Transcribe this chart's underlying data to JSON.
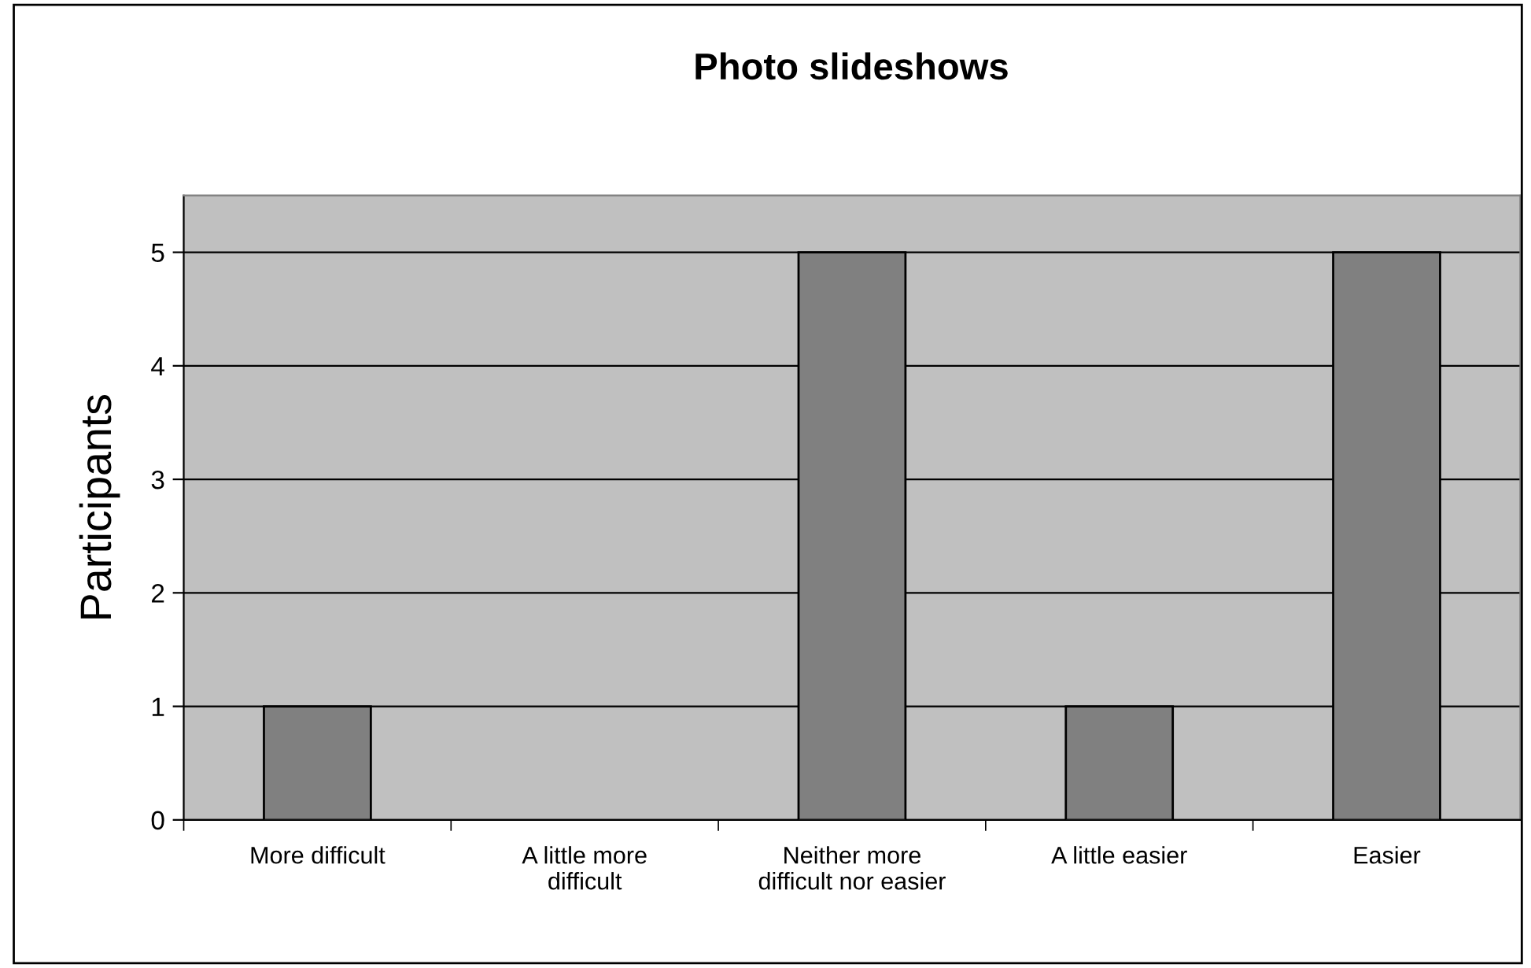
{
  "chart_data": {
    "type": "bar",
    "title": "Photo slideshows",
    "ylabel": "Participants",
    "categories": [
      "More difficult",
      "A little more difficult",
      "Neither more difficult nor easier",
      "A little easier",
      "Easier"
    ],
    "values": [
      1,
      0,
      5,
      1,
      5
    ],
    "color": "#808080",
    "ylim": [
      0,
      5.5
    ],
    "yticks": [
      0,
      1,
      2,
      3,
      4,
      5
    ],
    "grid": "y"
  }
}
